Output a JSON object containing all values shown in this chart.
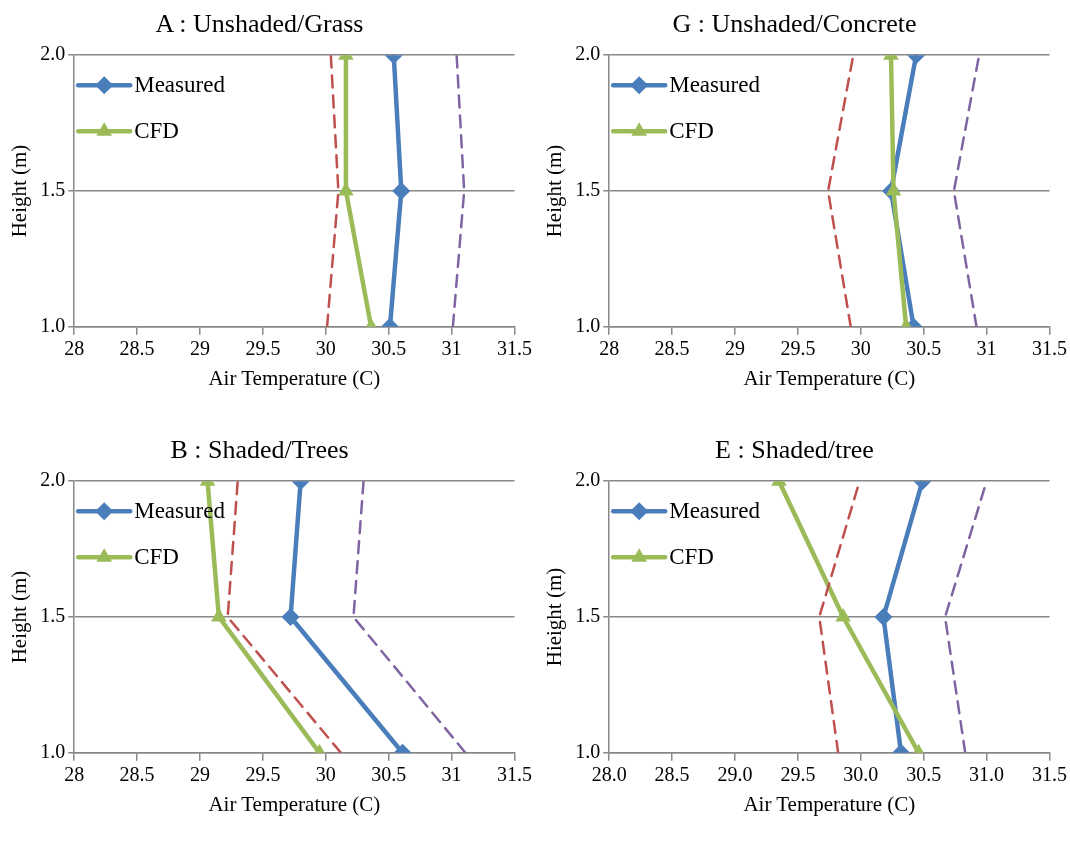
{
  "chart_data": [
    {
      "type": "line",
      "title": "A : Unshaded/Grass",
      "xlabel": "Air Temperature (C)",
      "ylabel": "Height (m)",
      "xlim": [
        28,
        31.5
      ],
      "xticks": [
        28,
        28.5,
        29,
        29.5,
        30,
        30.5,
        31,
        31.5
      ],
      "ylim": [
        1,
        2
      ],
      "yticks": [
        {
          "value": 1,
          "label": "1.0"
        },
        {
          "value": 1.5,
          "label": "1.5"
        },
        {
          "value": 2,
          "label": "2.0"
        }
      ],
      "grid": "y",
      "legend": "top left",
      "series": [
        {
          "name": "Measured",
          "color": "#4a7ebb",
          "marker": "diamond",
          "line_style": "solid",
          "x": [
            30.51,
            30.6,
            30.54
          ],
          "values": [
            1,
            1.5,
            2
          ]
        },
        {
          "name": "CFD",
          "color": "#9bbb59",
          "marker": "triangle",
          "line_style": "solid",
          "x": [
            30.36,
            30.16,
            30.16
          ],
          "values": [
            1,
            1.5,
            2
          ]
        },
        {
          "color": "#c0504d",
          "marker": "none",
          "line_style": "dashed",
          "x": [
            30.01,
            30.1,
            30.04
          ],
          "values": [
            1,
            1.5,
            2
          ]
        },
        {
          "color": "#8064a2",
          "marker": "none",
          "line_style": "dashed",
          "x": [
            31.01,
            31.1,
            31.04
          ],
          "values": [
            1,
            1.5,
            2
          ]
        }
      ]
    },
    {
      "type": "line",
      "title": "G : Unshaded/Concrete",
      "xlabel": "Air Temperature (C)",
      "ylabel": "Height (m)",
      "xlim": [
        28,
        31.5
      ],
      "xticks": [
        28,
        28.5,
        29,
        29.5,
        30,
        30.5,
        31,
        31.5
      ],
      "ylim": [
        1,
        2
      ],
      "yticks": [
        {
          "value": 1,
          "label": "1.0"
        },
        {
          "value": 1.5,
          "label": "1.5"
        },
        {
          "value": 2,
          "label": "2.0"
        }
      ],
      "grid": "y",
      "legend": "top left",
      "series": [
        {
          "name": "Measured",
          "color": "#4a7ebb",
          "marker": "diamond",
          "line_style": "solid",
          "x": [
            30.42,
            30.24,
            30.44
          ],
          "values": [
            1,
            1.5,
            2
          ]
        },
        {
          "name": "CFD",
          "color": "#9bbb59",
          "marker": "triangle",
          "line_style": "solid",
          "x": [
            30.36,
            30.26,
            30.24
          ],
          "values": [
            1,
            1.5,
            2
          ]
        },
        {
          "color": "#c0504d",
          "marker": "none",
          "line_style": "dashed",
          "x": [
            29.92,
            29.74,
            29.94
          ],
          "values": [
            1,
            1.5,
            2
          ]
        },
        {
          "color": "#8064a2",
          "marker": "none",
          "line_style": "dashed",
          "x": [
            30.92,
            30.74,
            30.94
          ],
          "values": [
            1,
            1.5,
            2
          ]
        }
      ]
    },
    {
      "type": "line",
      "title": "B : Shaded/Trees",
      "xlabel": "Air Temperature (C)",
      "ylabel": "Height (m)",
      "xlim": [
        28,
        31.5
      ],
      "xticks": [
        28,
        28.5,
        29,
        29.5,
        30,
        30.5,
        31,
        31.5
      ],
      "ylim": [
        1,
        2
      ],
      "yticks": [
        {
          "value": 1,
          "label": "1.0"
        },
        {
          "value": 1.5,
          "label": "1.5"
        },
        {
          "value": 2,
          "label": "2.0"
        }
      ],
      "grid": "y",
      "legend": "top left",
      "series": [
        {
          "name": "Measured",
          "color": "#4a7ebb",
          "marker": "diamond",
          "line_style": "solid",
          "x": [
            30.61,
            29.72,
            29.8
          ],
          "values": [
            1,
            1.5,
            2
          ]
        },
        {
          "name": "CFD",
          "color": "#9bbb59",
          "marker": "triangle",
          "line_style": "solid",
          "x": [
            29.95,
            29.15,
            29.06
          ],
          "values": [
            1,
            1.5,
            2
          ]
        },
        {
          "color": "#c0504d",
          "marker": "none",
          "line_style": "dashed",
          "x": [
            30.12,
            29.22,
            29.3
          ],
          "values": [
            1,
            1.5,
            2
          ]
        },
        {
          "color": "#8064a2",
          "marker": "none",
          "line_style": "dashed",
          "x": [
            31.11,
            30.22,
            30.3
          ],
          "values": [
            1,
            1.5,
            2
          ]
        }
      ]
    },
    {
      "type": "line",
      "title": "E : Shaded/tree",
      "xlabel": "Air Temperature (C)",
      "ylabel": "Hieight (m)",
      "xlim": [
        28,
        31.5
      ],
      "xticks": [
        {
          "value": 28,
          "label": "28.0"
        },
        {
          "value": 28.5,
          "label": "28.5"
        },
        {
          "value": 29,
          "label": "29.0"
        },
        {
          "value": 29.5,
          "label": "29.5"
        },
        {
          "value": 30,
          "label": "30.0"
        },
        {
          "value": 30.5,
          "label": "30.5"
        },
        {
          "value": 31,
          "label": "31.0"
        },
        {
          "value": 31.5,
          "label": "31.5"
        }
      ],
      "ylim": [
        1,
        2
      ],
      "yticks": [
        {
          "value": 1,
          "label": "1.0"
        },
        {
          "value": 1.5,
          "label": "1.5"
        },
        {
          "value": 2,
          "label": "2.0"
        }
      ],
      "grid": "y",
      "legend": "top left",
      "series": [
        {
          "name": "Measured",
          "color": "#4a7ebb",
          "marker": "diamond",
          "line_style": "solid",
          "x": [
            30.32,
            30.18,
            30.49
          ],
          "values": [
            1,
            1.5,
            2
          ]
        },
        {
          "name": "CFD",
          "color": "#9bbb59",
          "marker": "triangle",
          "line_style": "solid",
          "x": [
            30.46,
            29.86,
            29.35
          ],
          "values": [
            1,
            1.5,
            2
          ]
        },
        {
          "color": "#c0504d",
          "marker": "none",
          "line_style": "dashed",
          "x": [
            29.82,
            29.67,
            29.99
          ],
          "values": [
            1,
            1.5,
            2
          ]
        },
        {
          "color": "#8064a2",
          "marker": "none",
          "line_style": "dashed",
          "x": [
            30.83,
            30.67,
            31.0
          ],
          "values": [
            1,
            1.5,
            2
          ]
        }
      ]
    }
  ]
}
